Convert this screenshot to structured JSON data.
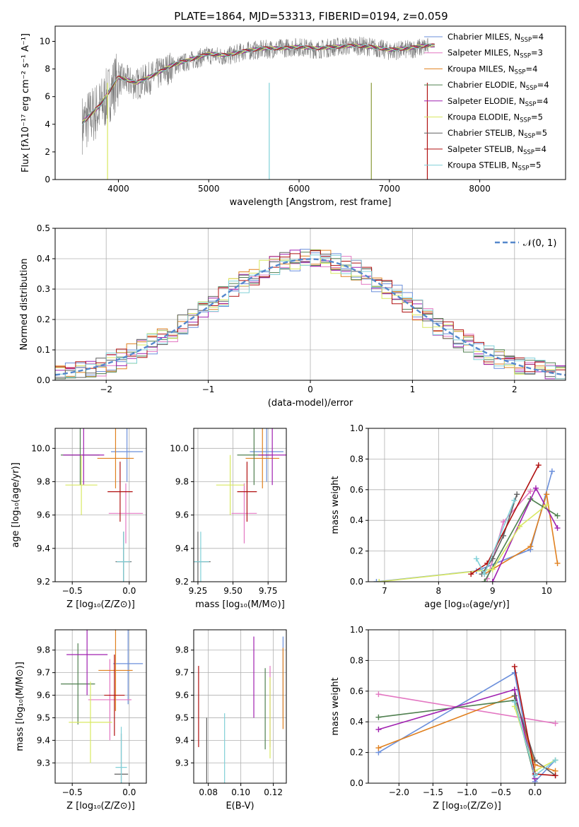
{
  "title": "PLATE=1864, MJD=53313, FIBERID=0194, z=0.059",
  "colors": [
    "#6b8fdb",
    "#e377c2",
    "#e0801f",
    "#508050",
    "#a020b0",
    "#d8e860",
    "#606060",
    "#b01010",
    "#80d0d8"
  ],
  "models": [
    {
      "label": "Chabrier MILES, N",
      "sub": "SSP",
      "n": "=4"
    },
    {
      "label": "Salpeter MILES, N",
      "sub": "SSP",
      "n": "=3"
    },
    {
      "label": "Kroupa MILES, N",
      "sub": "SSP",
      "n": "=4"
    },
    {
      "label": "Chabrier ELODIE, N",
      "sub": "SSP",
      "n": "=4"
    },
    {
      "label": "Salpeter ELODIE, N",
      "sub": "SSP",
      "n": "=4"
    },
    {
      "label": "Kroupa ELODIE, N",
      "sub": "SSP",
      "n": "=5"
    },
    {
      "label": "Chabrier STELIB, N",
      "sub": "SSP",
      "n": "=5"
    },
    {
      "label": "Salpeter STELIB, N",
      "sub": "SSP",
      "n": "=4"
    },
    {
      "label": "Kroupa STELIB, N",
      "sub": "SSP",
      "n": "=5"
    }
  ],
  "chart_data": [
    {
      "id": "spectrum",
      "type": "line",
      "xlabel": "wavelength [Angstrom, rest frame]",
      "ylabel": "Flux [fλ10⁻¹⁷ erg cm⁻² s⁻¹ A⁻¹]",
      "xlim": [
        3300,
        8950
      ],
      "ylim": [
        0,
        11.1
      ],
      "xticks": [
        "4000",
        "5000",
        "6000",
        "7000",
        "8000"
      ],
      "yticks": [
        "0",
        "2",
        "4",
        "6",
        "8",
        "10"
      ],
      "data_x": [
        3600,
        3800,
        4000,
        4200,
        4400,
        4600,
        4800,
        5000,
        5200,
        5400,
        5600,
        5800,
        6000,
        6200,
        6400,
        6600,
        6800,
        7000,
        7200,
        7400
      ],
      "data_y": [
        4.0,
        5.2,
        7.3,
        6.9,
        7.5,
        8.2,
        8.6,
        9.0,
        8.9,
        9.3,
        9.4,
        9.5,
        9.6,
        9.4,
        9.6,
        9.7,
        9.6,
        9.3,
        9.4,
        9.6
      ],
      "model_y": [
        4.1,
        5.4,
        7.4,
        7.0,
        7.6,
        8.3,
        8.7,
        9.1,
        9.0,
        9.3,
        9.5,
        9.5,
        9.6,
        9.5,
        9.6,
        9.7,
        9.6,
        9.4,
        9.5,
        9.7
      ]
    },
    {
      "id": "residuals",
      "type": "area",
      "xlabel": "(data-model)/error",
      "ylabel": "Normed distribution",
      "xlim": [
        -2.5,
        2.5
      ],
      "ylim": [
        0,
        0.5
      ],
      "xticks": [
        "−2",
        "−1",
        "0",
        "1",
        "2"
      ],
      "yticks": [
        "0.0",
        "0.1",
        "0.2",
        "0.3",
        "0.4",
        "0.5"
      ],
      "legend": "𝒩(0, 1)"
    },
    {
      "id": "age-vs-Z",
      "type": "scatter",
      "xlabel": "Z [log₁₀(Z/Z⊙)]",
      "ylabel": "age  [log₁₀(age/yr)]",
      "xlim": [
        -0.65,
        0.15
      ],
      "ylim": [
        9.2,
        10.12
      ],
      "xticks": [
        "−0.5",
        "0.0"
      ],
      "yticks": [
        "9.2",
        "9.4",
        "9.6",
        "9.8",
        "10.0"
      ],
      "points": [
        {
          "x": -0.02,
          "y": 9.98,
          "xerr": 0.14,
          "yerr": 0.0
        },
        {
          "x": -0.03,
          "y": 9.61,
          "xerr": 0.15,
          "yerr": 0.08
        },
        {
          "x": -0.12,
          "y": 9.94,
          "xerr": 0.16,
          "yerr": 0.0
        },
        {
          "x": -0.43,
          "y": 9.96,
          "xerr": 0.17,
          "yerr": 0.0
        },
        {
          "x": -0.4,
          "y": 9.96,
          "xerr": 0.18,
          "yerr": 0.0
        },
        {
          "x": -0.42,
          "y": 9.78,
          "xerr": 0.14,
          "yerr": 0.3
        },
        {
          "x": -0.05,
          "y": 9.32,
          "xerr": 0.07,
          "yerr": 0.08
        },
        {
          "x": -0.08,
          "y": 9.74,
          "xerr": 0.11,
          "yerr": 0.07
        },
        {
          "x": -0.05,
          "y": 9.32,
          "xerr": 0.06,
          "yerr": 0.07
        }
      ]
    },
    {
      "id": "age-vs-mass",
      "type": "scatter",
      "xlabel": "mass [log₁₀(M/M⊙)]",
      "ylabel": "",
      "xlim": [
        9.22,
        9.88
      ],
      "ylim": [
        9.2,
        10.12
      ],
      "xticks": [
        "9.25",
        "9.50",
        "9.75"
      ],
      "yticks": [
        "9.2",
        "9.4",
        "9.6",
        "9.8",
        "10.0"
      ],
      "points": [
        {
          "x": 9.74,
          "y": 9.98,
          "xerr": 0.12,
          "yerr": 0.0
        },
        {
          "x": 9.58,
          "y": 9.61,
          "xerr": 0.09,
          "yerr": 0.0
        },
        {
          "x": 9.71,
          "y": 9.94,
          "xerr": 0.12,
          "yerr": 0.0
        },
        {
          "x": 9.65,
          "y": 9.96,
          "xerr": 0.12,
          "yerr": 0.0
        },
        {
          "x": 9.78,
          "y": 9.96,
          "xerr": 0.1,
          "yerr": 0.0
        },
        {
          "x": 9.48,
          "y": 9.78,
          "xerr": 0.1,
          "yerr": 0.3
        },
        {
          "x": 9.25,
          "y": 9.32,
          "xerr": 0.09,
          "yerr": 0.0
        },
        {
          "x": 9.6,
          "y": 9.74,
          "xerr": 0.07,
          "yerr": 0.0
        },
        {
          "x": 9.27,
          "y": 9.32,
          "xerr": 0.06,
          "yerr": 0.0
        }
      ]
    },
    {
      "id": "mass-weight-vs-age",
      "type": "line",
      "xlabel": "age  [log₁₀(age/yr)]",
      "ylabel": "mass weight",
      "xlim": [
        6.7,
        10.35
      ],
      "ylim": [
        0,
        1.0
      ],
      "xticks": [
        "7",
        "8",
        "9",
        "10"
      ],
      "yticks": [
        "0.0",
        "0.2",
        "0.4",
        "0.6",
        "0.8",
        "1.0"
      ],
      "series": [
        {
          "x": [
            6.85,
            8.7,
            9.7,
            10.1
          ],
          "y": [
            0.0,
            0.07,
            0.21,
            0.72
          ]
        },
        {
          "x": [
            8.9,
            9.2,
            9.7
          ],
          "y": [
            0.02,
            0.39,
            0.59
          ]
        },
        {
          "x": [
            8.85,
            9.7,
            10.0,
            10.2
          ],
          "y": [
            0.05,
            0.23,
            0.57,
            0.12
          ]
        },
        {
          "x": [
            8.85,
            9.7,
            10.2
          ],
          "y": [
            0.0,
            0.54,
            0.43
          ]
        },
        {
          "x": [
            9.0,
            9.8,
            10.2
          ],
          "y": [
            0.0,
            0.61,
            0.35
          ]
        },
        {
          "x": [
            6.9,
            9.0,
            9.5,
            10.0
          ],
          "y": [
            0.0,
            0.08,
            0.36,
            0.5
          ]
        },
        {
          "x": [
            8.8,
            9.0,
            9.2,
            9.45
          ],
          "y": [
            0.05,
            0.15,
            0.3,
            0.57
          ]
        },
        {
          "x": [
            8.6,
            8.9,
            9.85
          ],
          "y": [
            0.05,
            0.12,
            0.76
          ]
        },
        {
          "x": [
            8.7,
            8.85,
            9.4
          ],
          "y": [
            0.15,
            0.05,
            0.53
          ]
        }
      ]
    },
    {
      "id": "mass-vs-Z",
      "type": "scatter",
      "xlabel": "Z [log₁₀(Z/Z⊙)]",
      "ylabel": "mass [log₁₀(M/M⊙)]",
      "xlim": [
        -0.65,
        0.15
      ],
      "ylim": [
        9.21,
        9.89
      ],
      "xticks": [
        "−0.5",
        "0.0"
      ],
      "yticks": [
        "9.3",
        "9.4",
        "9.5",
        "9.6",
        "9.7",
        "9.8"
      ],
      "points": [
        {
          "x": -0.01,
          "y": 9.74,
          "xerr": 0.13,
          "yerr": 0.0
        },
        {
          "x": -0.17,
          "y": 9.58,
          "xerr": 0.19,
          "yerr": 0.0
        },
        {
          "x": -0.12,
          "y": 9.71,
          "xerr": 0.15,
          "yerr": 0.0
        },
        {
          "x": -0.45,
          "y": 9.65,
          "xerr": 0.15,
          "yerr": 0.0
        },
        {
          "x": -0.37,
          "y": 9.78,
          "xerr": 0.18,
          "yerr": 0.0
        },
        {
          "x": -0.34,
          "y": 9.48,
          "xerr": 0.19,
          "yerr": 0.1
        },
        {
          "x": -0.07,
          "y": 9.25,
          "xerr": 0.06,
          "yerr": 0.0
        },
        {
          "x": -0.13,
          "y": 9.6,
          "xerr": 0.09,
          "yerr": 0.0
        },
        {
          "x": -0.07,
          "y": 9.28,
          "xerr": 0.05,
          "yerr": 0.0
        }
      ]
    },
    {
      "id": "mass-vs-EBV",
      "type": "scatter",
      "xlabel": "E(B-V)",
      "ylabel": "",
      "xlim": [
        0.071,
        0.128
      ],
      "ylim": [
        9.21,
        9.89
      ],
      "xticks": [
        "0.08",
        "0.10",
        "0.12"
      ],
      "yticks": [
        "9.3",
        "9.4",
        "9.5",
        "9.6",
        "9.7",
        "9.8"
      ],
      "points": [
        {
          "x": 0.126,
          "y": 9.68
        },
        {
          "x": 0.118,
          "y": 9.55
        },
        {
          "x": 0.126,
          "y": 9.63
        },
        {
          "x": 0.115,
          "y": 9.54
        },
        {
          "x": 0.108,
          "y": 9.68
        },
        {
          "x": 0.118,
          "y": 9.5
        },
        {
          "x": 0.079,
          "y": 9.32
        },
        {
          "x": 0.074,
          "y": 9.55
        },
        {
          "x": 0.09,
          "y": 9.34
        }
      ]
    },
    {
      "id": "mass-weight-vs-Z",
      "type": "line",
      "xlabel": "Z [log₁₀(Z/Z⊙)]",
      "ylabel": "mass weight",
      "xlim": [
        -2.45,
        0.45
      ],
      "ylim": [
        0,
        1.0
      ],
      "xticks": [
        "−2.0",
        "−1.5",
        "−1.0",
        "−0.5",
        "0.0"
      ],
      "yticks": [
        "0.0",
        "0.2",
        "0.4",
        "0.6",
        "0.8",
        "1.0"
      ],
      "series": [
        {
          "x": [
            -2.3,
            -0.3,
            0.0,
            0.3
          ],
          "y": [
            0.2,
            0.72,
            0.01,
            0.15
          ]
        },
        {
          "x": [
            -2.3,
            0.3
          ],
          "y": [
            0.58,
            0.39
          ]
        },
        {
          "x": [
            -2.3,
            -0.3,
            0.0,
            0.3
          ],
          "y": [
            0.23,
            0.57,
            0.12,
            0.08
          ]
        },
        {
          "x": [
            -2.3,
            -0.3,
            0.0
          ],
          "y": [
            0.43,
            0.54,
            0.03
          ]
        },
        {
          "x": [
            -2.3,
            -0.3,
            0.0
          ],
          "y": [
            0.35,
            0.61,
            0.03
          ]
        },
        {
          "x": [
            -0.3,
            0.0,
            0.3
          ],
          "y": [
            0.5,
            0.08,
            0.15
          ]
        },
        {
          "x": [
            -0.3,
            0.0,
            0.3
          ],
          "y": [
            0.57,
            0.15,
            0.05
          ]
        },
        {
          "x": [
            -0.3,
            0.0,
            0.3
          ],
          "y": [
            0.76,
            0.06,
            0.05
          ]
        },
        {
          "x": [
            -0.3,
            0.0,
            0.3
          ],
          "y": [
            0.53,
            0.05,
            0.15
          ]
        }
      ]
    }
  ]
}
